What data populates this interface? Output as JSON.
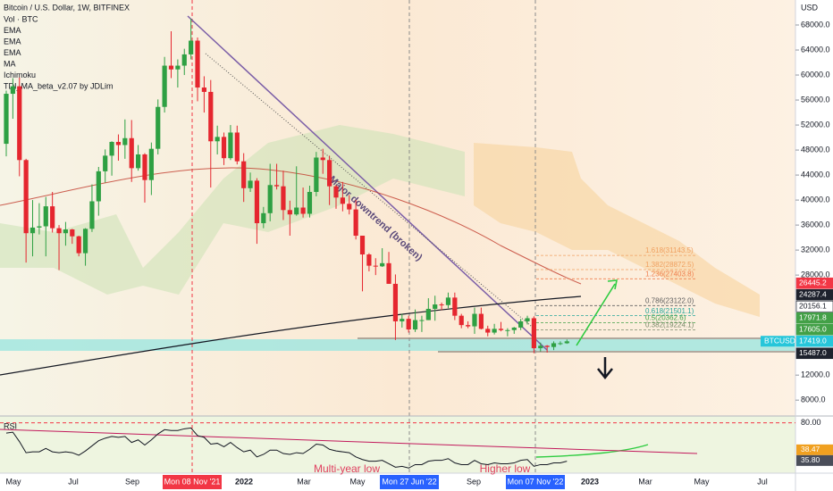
{
  "header": {
    "title": "Bitcoin / U.S. Dollar, 1W, BITFINEX",
    "indicators": [
      "Vol · BTC",
      "EMA",
      "EMA",
      "EMA",
      "MA",
      "Ichimoku",
      "TDI_MA_beta_v2.07 by JDLim"
    ]
  },
  "chart_data": {
    "type": "candlestick",
    "currency": "USD",
    "up_color": "#2ea043",
    "down_color": "#e5262f",
    "open": [
      49000,
      57000,
      58200,
      46400,
      34700,
      35600,
      35800,
      39000,
      35500,
      34700,
      35300,
      34200,
      31500,
      35400,
      39800,
      44600,
      47100,
      49300,
      48800,
      49900,
      45100,
      47300,
      43200,
      48200,
      54900,
      61500,
      60900,
      61500,
      63300,
      65500,
      58000,
      57300,
      49400,
      50100,
      46700,
      50800,
      46200,
      41900,
      43100,
      36300,
      37900,
      42400,
      42200,
      38400,
      37700,
      38800,
      37800,
      41300,
      46800,
      46400,
      42200,
      40400,
      39400,
      38500,
      34300,
      31300,
      29500,
      29400,
      29900,
      26600,
      20600,
      21000,
      19300,
      20800,
      20800,
      22600,
      23300,
      23200,
      24400,
      21500,
      20000,
      19800,
      21800,
      19400,
      18800,
      19400,
      19200,
      19200,
      19600,
      20600,
      21100,
      16300,
      16700,
      16500,
      17100,
      17100
    ],
    "high": [
      57500,
      59500,
      59600,
      46600,
      40000,
      39500,
      40500,
      41300,
      36000,
      36500,
      35400,
      34300,
      35500,
      42500,
      45300,
      48100,
      49400,
      50500,
      52900,
      52800,
      48800,
      47500,
      49200,
      56100,
      62900,
      67000,
      62500,
      64200,
      69000,
      66000,
      59800,
      59200,
      51900,
      50800,
      52000,
      51900,
      47500,
      44400,
      43500,
      38900,
      45800,
      45800,
      44700,
      39900,
      45400,
      42000,
      42300,
      47700,
      48200,
      47100,
      42400,
      42900,
      40800,
      40000,
      34300,
      31500,
      30700,
      32300,
      31700,
      28100,
      21800,
      21500,
      22500,
      21500,
      24300,
      24700,
      23600,
      25200,
      25200,
      21800,
      20600,
      22800,
      22800,
      19900,
      20200,
      20500,
      19500,
      19700,
      21000,
      21500,
      21400,
      17200,
      16800,
      17400,
      17400,
      17700
    ],
    "low": [
      47000,
      53000,
      43800,
      30000,
      31000,
      34500,
      31000,
      34800,
      28800,
      32700,
      33000,
      31000,
      29500,
      34900,
      37500,
      42800,
      43900,
      46300,
      46600,
      42900,
      44700,
      39600,
      40800,
      47300,
      54000,
      59500,
      58000,
      60000,
      62500,
      55800,
      54000,
      42000,
      47300,
      45600,
      46400,
      45700,
      39700,
      41300,
      33000,
      35500,
      36600,
      41700,
      36800,
      34300,
      37500,
      37200,
      37200,
      40600,
      44200,
      39200,
      38600,
      38200,
      37700,
      33700,
      25400,
      28600,
      28000,
      29300,
      26600,
      17600,
      19600,
      18800,
      18900,
      18900,
      20800,
      20700,
      22400,
      22700,
      20800,
      19500,
      19500,
      18600,
      19300,
      18200,
      18500,
      19000,
      18200,
      18600,
      19200,
      20100,
      15500,
      15800,
      15600,
      16000,
      16800,
      17000
    ],
    "close": [
      57000,
      58200,
      46400,
      34700,
      35600,
      35800,
      39000,
      35500,
      34700,
      35300,
      34200,
      31500,
      35400,
      39800,
      44600,
      47100,
      49300,
      48800,
      49900,
      45100,
      47300,
      43200,
      48200,
      54900,
      61500,
      60900,
      61500,
      63300,
      65500,
      58000,
      57300,
      49400,
      50100,
      46700,
      50800,
      46200,
      41900,
      43100,
      36300,
      37900,
      42400,
      42200,
      38400,
      37700,
      38800,
      37800,
      41300,
      46800,
      46400,
      42200,
      40400,
      39400,
      38500,
      34300,
      31300,
      29500,
      29400,
      29900,
      26600,
      20600,
      21000,
      19300,
      20800,
      20800,
      22600,
      23300,
      23200,
      24400,
      21500,
      20000,
      19800,
      21800,
      19400,
      18800,
      19400,
      19200,
      19200,
      19600,
      20600,
      21100,
      16300,
      16700,
      16500,
      17100,
      17100,
      17400
    ],
    "ylim": [
      5600,
      72000
    ],
    "yticks": [
      {
        "value": 68000,
        "label": "68000.0"
      },
      {
        "value": 64000,
        "label": "64000.0"
      },
      {
        "value": 60000,
        "label": "60000.0"
      },
      {
        "value": 56000,
        "label": "56000.0"
      },
      {
        "value": 52000,
        "label": "52000.0"
      },
      {
        "value": 48000,
        "label": "48000.0"
      },
      {
        "value": 44000,
        "label": "44000.0"
      },
      {
        "value": 40000,
        "label": "40000.0"
      },
      {
        "value": 36000,
        "label": "36000.0"
      },
      {
        "value": 32000,
        "label": "32000.0"
      },
      {
        "value": 28000,
        "label": "28000.0"
      },
      {
        "value": 12000,
        "label": "12000.0"
      },
      {
        "value": 8000,
        "label": "8000.0"
      }
    ],
    "x_labels": [
      "May",
      "Jul",
      "Sep",
      "Mon 08 Nov '21",
      "2022",
      "Mar",
      "May",
      "Mon 27 Jun '22",
      "Sep",
      "Mon 07 Nov '22",
      "2023",
      "Mar",
      "May",
      "Jul"
    ],
    "price_tags": [
      {
        "value": 26445.2,
        "label": "26445.2",
        "color": "#f23645"
      },
      {
        "value": 24287.4,
        "label": "24287.4",
        "color": "#1e222d"
      },
      {
        "value": 20156.1,
        "label": "20156.1",
        "color": "#ffffff"
      },
      {
        "value": 17971.8,
        "label": "17971.8",
        "color": "#43a047"
      },
      {
        "value": 17605.0,
        "label": "17605.0",
        "color": "#43a047"
      },
      {
        "value": 17419.0,
        "label": "17419.0",
        "color": "#26c6da"
      },
      {
        "value": 15487.0,
        "label": "15487.0",
        "color": "#1e222d"
      }
    ],
    "symbol_tag": "BTCUSD",
    "fib_levels": [
      {
        "value": 31143.5,
        "label": "1.618(31143.5)",
        "color": "#f0a060"
      },
      {
        "value": 28872.5,
        "label": "1.382(28872.5)",
        "color": "#f0a060"
      },
      {
        "value": 27403.8,
        "label": "1.236(27403.8)",
        "color": "#f08050"
      },
      {
        "value": 23122.0,
        "label": "0.786(23122.0)",
        "color": "#606060"
      },
      {
        "value": 21501.1,
        "label": "0.618(21501.1)",
        "color": "#26a69a"
      },
      {
        "value": 20362.6,
        "label": "0.5(20362.6)",
        "color": "#43a047"
      },
      {
        "value": 19224.1,
        "label": "0.382(19224.1)",
        "color": "#7a8a6a"
      }
    ],
    "annotations": [
      "Major downtrend (broken)",
      "Multi-year low",
      "Higher low"
    ],
    "rsi": {
      "title": "RSI",
      "color": "#131722",
      "values": [
        68,
        69,
        58,
        45,
        46,
        46,
        50,
        46,
        45,
        46,
        45,
        42,
        47,
        53,
        59,
        62,
        64,
        63,
        64,
        57,
        60,
        54,
        60,
        67,
        72,
        71,
        71,
        73,
        74,
        65,
        63,
        55,
        56,
        52,
        57,
        51,
        46,
        48,
        40,
        43,
        48,
        48,
        44,
        43,
        45,
        44,
        49,
        55,
        54,
        49,
        47,
        46,
        45,
        40,
        37,
        35,
        35,
        36,
        32,
        28,
        29,
        27,
        31,
        31,
        35,
        36,
        36,
        38,
        33,
        31,
        31,
        36,
        32,
        31,
        33,
        32,
        32,
        33,
        36,
        37,
        29,
        31,
        31,
        33,
        33,
        35
      ],
      "ylim": [
        21,
        88
      ],
      "yticks": [
        {
          "value": 80,
          "label": "80.00"
        }
      ],
      "tags": [
        {
          "value": 38.47,
          "label": "38.47",
          "color": "#f0a020"
        },
        {
          "value": 35.8,
          "label": "35.80",
          "color": "#4a4e5a"
        }
      ]
    }
  }
}
